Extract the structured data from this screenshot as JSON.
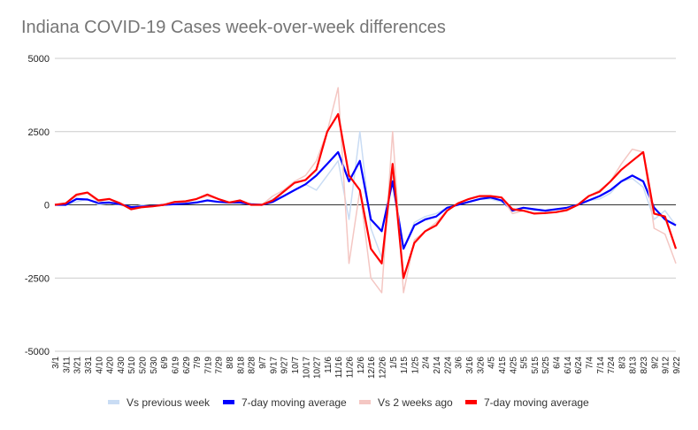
{
  "chart_data": {
    "type": "line",
    "title": "Indiana COVID-19 Cases week-over-week differences",
    "xlabel": "",
    "ylabel": "",
    "ylim": [
      -5000,
      5000
    ],
    "yticks": [
      5000,
      2500,
      0,
      -2500,
      -5000
    ],
    "yticklabels": [
      "5000",
      "2500",
      "0",
      "-2500",
      "-5000"
    ],
    "grid": true,
    "legend_position": "bottom",
    "categories": [
      "3/1",
      "3/11",
      "3/21",
      "3/31",
      "4/10",
      "4/20",
      "4/30",
      "5/10",
      "5/20",
      "5/30",
      "6/9",
      "6/19",
      "6/29",
      "7/9",
      "7/19",
      "7/29",
      "8/8",
      "8/18",
      "8/28",
      "9/7",
      "9/17",
      "9/27",
      "10/7",
      "10/17",
      "10/27",
      "11/6",
      "11/16",
      "11/26",
      "12/6",
      "12/16",
      "12/26",
      "1/5",
      "1/15",
      "1/25",
      "2/4",
      "2/14",
      "2/24",
      "3/6",
      "3/16",
      "3/26",
      "4/5",
      "4/15",
      "4/25",
      "5/5",
      "5/15",
      "5/25",
      "6/4",
      "6/14",
      "6/24",
      "7/4",
      "7/14",
      "7/24",
      "8/3",
      "8/13",
      "8/23",
      "9/2",
      "9/12",
      "9/22"
    ],
    "series": [
      {
        "name": "Vs previous week",
        "color": "#c9dcf4",
        "values": [
          0,
          0,
          100,
          200,
          0,
          50,
          0,
          -100,
          0,
          -50,
          0,
          50,
          50,
          100,
          150,
          100,
          50,
          100,
          0,
          0,
          200,
          300,
          500,
          700,
          500,
          1000,
          1500,
          -500,
          2500,
          -800,
          -1800,
          1000,
          -1500,
          -600,
          -400,
          -300,
          -100,
          0,
          100,
          200,
          200,
          100,
          -200,
          -100,
          -200,
          -200,
          -150,
          -100,
          0,
          150,
          200,
          400,
          800,
          900,
          600,
          -500,
          -200,
          -700
        ]
      },
      {
        "name": "7-day moving average",
        "color": "#0000ff",
        "values": [
          0,
          0,
          200,
          180,
          60,
          80,
          20,
          -80,
          -60,
          -40,
          0,
          20,
          40,
          80,
          150,
          100,
          80,
          80,
          20,
          0,
          100,
          300,
          500,
          700,
          1000,
          1400,
          1800,
          800,
          1500,
          -500,
          -900,
          800,
          -1500,
          -700,
          -500,
          -400,
          -100,
          0,
          100,
          200,
          250,
          150,
          -200,
          -100,
          -150,
          -200,
          -150,
          -100,
          0,
          150,
          300,
          500,
          800,
          1000,
          800,
          -100,
          -500,
          -700
        ]
      },
      {
        "name": "Vs 2 weeks ago",
        "color": "#f4c7c3",
        "values": [
          0,
          50,
          300,
          400,
          100,
          200,
          50,
          -150,
          -100,
          -50,
          0,
          80,
          100,
          200,
          300,
          200,
          100,
          150,
          0,
          0,
          300,
          500,
          800,
          1000,
          1500,
          2500,
          4000,
          -2000,
          500,
          -2500,
          -3000,
          2500,
          -3000,
          -1200,
          -900,
          -600,
          -200,
          50,
          200,
          300,
          300,
          250,
          -300,
          -200,
          -300,
          -300,
          -250,
          -150,
          0,
          300,
          500,
          800,
          1400,
          1900,
          1800,
          -800,
          -1000,
          -2000
        ]
      },
      {
        "name": "7-day moving average",
        "color": "#ff0000",
        "values": [
          0,
          50,
          350,
          420,
          150,
          200,
          50,
          -150,
          -80,
          -50,
          0,
          100,
          120,
          200,
          350,
          200,
          80,
          150,
          0,
          0,
          150,
          450,
          750,
          850,
          1200,
          2500,
          3100,
          1000,
          500,
          -1500,
          -2000,
          1400,
          -2500,
          -1300,
          -900,
          -700,
          -200,
          50,
          200,
          300,
          300,
          250,
          -150,
          -200,
          -300,
          -280,
          -250,
          -180,
          0,
          300,
          450,
          800,
          1200,
          1500,
          1800,
          -300,
          -400,
          -1500
        ]
      }
    ]
  }
}
